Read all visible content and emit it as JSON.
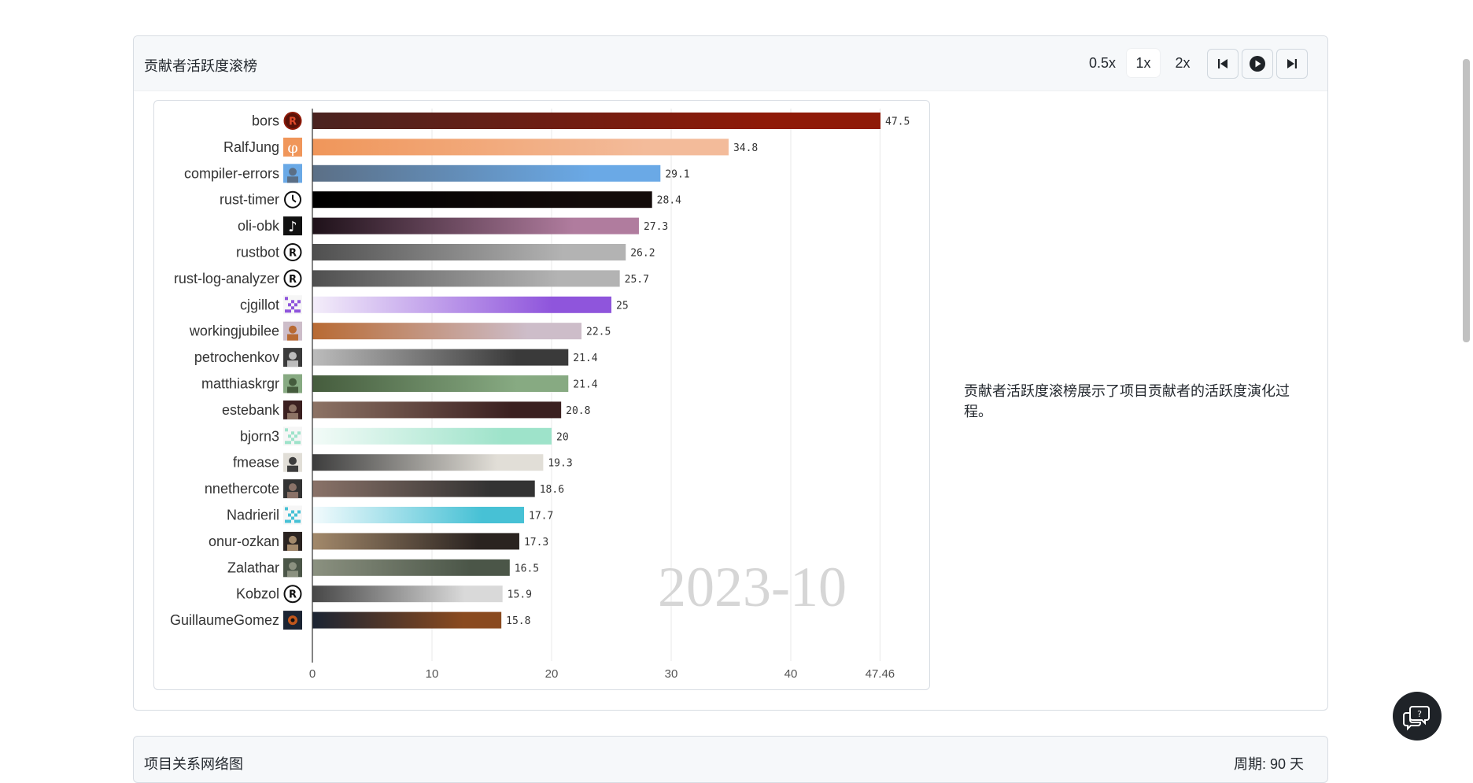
{
  "panel": {
    "title": "贡献者活跃度滚榜",
    "speeds": [
      "0.5x",
      "1x",
      "2x"
    ],
    "active_speed": "1x",
    "description": "贡献者活跃度滚榜展示了项目贡献者的活跃度演化过程。"
  },
  "next_panel": {
    "title": "项目关系网络图",
    "right_text": "周期: 90 天"
  },
  "chart_data": {
    "type": "bar",
    "orientation": "horizontal",
    "period_label": "2023-10",
    "x_ticks": [
      "0",
      "10",
      "20",
      "30",
      "40",
      "47.46"
    ],
    "xlim": [
      0,
      47.46
    ],
    "grid": true,
    "categories": [
      "bors",
      "RalfJung",
      "compiler-errors",
      "rust-timer",
      "oli-obk",
      "rustbot",
      "rust-log-analyzer",
      "cjgillot",
      "workingjubilee",
      "petrochenkov",
      "matthiaskrgr",
      "estebank",
      "bjorn3",
      "fmease",
      "nnethercote",
      "Nadrieril",
      "onur-ozkan",
      "Zalathar",
      "Kobzol",
      "GuillaumeGomez"
    ],
    "values": [
      47.5,
      34.8,
      29.1,
      28.4,
      27.3,
      26.2,
      25.7,
      25,
      22.5,
      21.4,
      21.4,
      20.8,
      20,
      19.3,
      18.6,
      17.7,
      17.3,
      16.5,
      15.9,
      15.8
    ],
    "value_labels": [
      "47.5",
      "34.8",
      "29.1",
      "28.4",
      "27.3",
      "26.2",
      "25.7",
      "25",
      "22.5",
      "21.4",
      "21.4",
      "20.8",
      "20",
      "19.3",
      "18.6",
      "17.7",
      "17.3",
      "16.5",
      "15.9",
      "15.8"
    ],
    "bar_colors": [
      [
        "#4a2320",
        "#8f1a08"
      ],
      [
        "#f0965a",
        "#f3bb9a"
      ],
      [
        "#5b6f86",
        "#6aa9e6"
      ],
      [
        "#000000",
        "#130b0a"
      ],
      [
        "#1e1119",
        "#b07c9e"
      ],
      [
        "#4f4f4f",
        "#b3b3b3"
      ],
      [
        "#4f4f4f",
        "#b3b3b3"
      ],
      [
        "#f4eefa",
        "#8f55dc"
      ],
      [
        "#b86a33",
        "#cdbdc9"
      ],
      [
        "#bcbcbc",
        "#3a3a3a"
      ],
      [
        "#455c3d",
        "#87aa82"
      ],
      [
        "#8d7365",
        "#3b2020"
      ],
      [
        "#f3fbf8",
        "#9ee3ca"
      ],
      [
        "#3d3d3d",
        "#e1ded7"
      ],
      [
        "#8a7268",
        "#333333"
      ],
      [
        "#f3fbfd",
        "#47c1d5"
      ],
      [
        "#a3896b",
        "#2a2320"
      ],
      [
        "#8b9180",
        "#4b5648"
      ],
      [
        "#474747",
        "#d9d9d9"
      ],
      [
        "#1b2433",
        "#8a4a1f"
      ]
    ],
    "avatar_icons": [
      "rust-logo-red-icon",
      "phi-orange-icon",
      "landscape-photo-icon",
      "clock-icon",
      "tiktok-icon",
      "rust-logo-icon",
      "rust-logo-icon",
      "purple-pixel-icon",
      "red-hair-photo-icon",
      "city-photo-icon",
      "portrait-photo-icon",
      "portrait-photo-icon",
      "mint-pixel-icon",
      "sunglasses-photo-icon",
      "portrait-photo-icon",
      "cyan-pixel-icon",
      "gold-portrait-icon",
      "nature-photo-icon",
      "rust-logo-icon",
      "eye-photo-icon"
    ]
  }
}
